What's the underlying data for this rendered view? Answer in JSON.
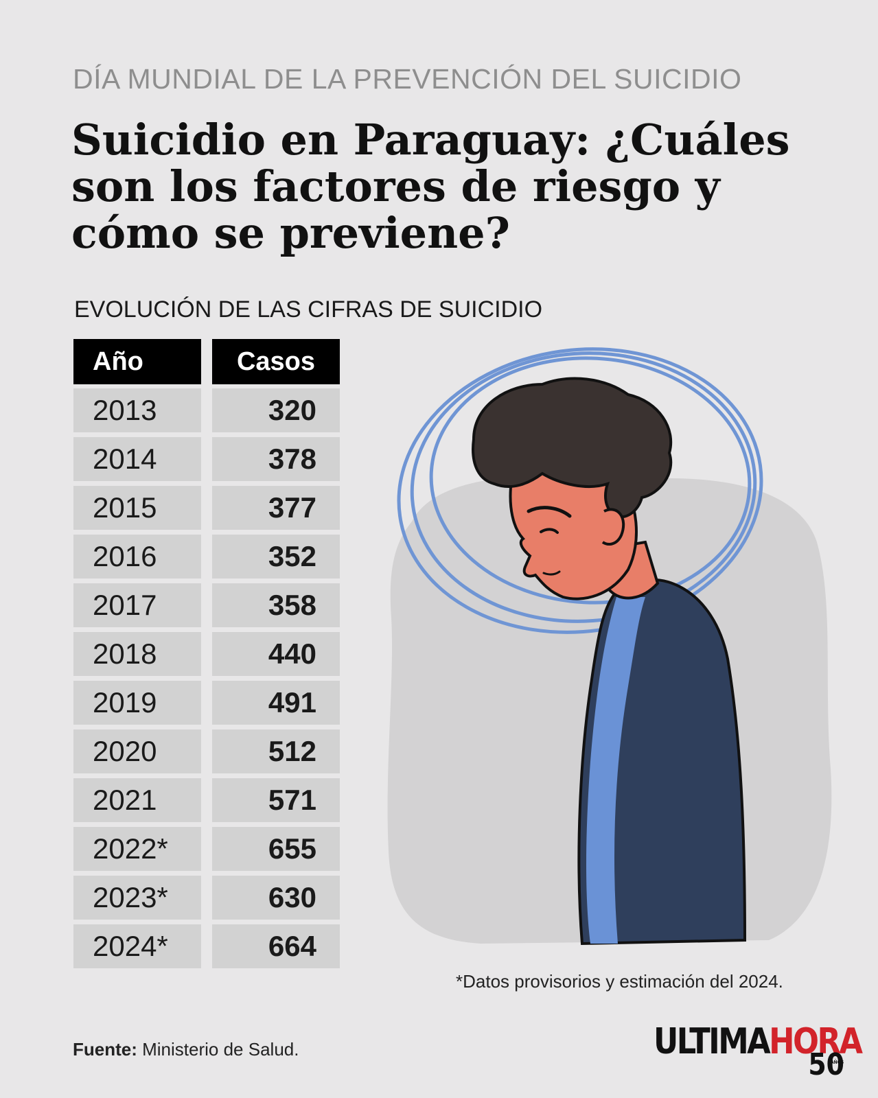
{
  "kicker": "DÍA MUNDIAL DE LA PREVENCIÓN DEL SUICIDIO",
  "headline": "Suicidio en Paraguay: ¿Cuáles son los factores de riesgo y cómo se previene?",
  "section_title": "EVOLUCIÓN DE LAS CIFRAS DE SUICIDIO",
  "table": {
    "headers": {
      "year": "Año",
      "cases": "Casos"
    },
    "rows": [
      {
        "year": "2013",
        "cases": "320"
      },
      {
        "year": "2014",
        "cases": "378"
      },
      {
        "year": "2015",
        "cases": "377"
      },
      {
        "year": "2016",
        "cases": "352"
      },
      {
        "year": "2017",
        "cases": "358"
      },
      {
        "year": "2018",
        "cases": "440"
      },
      {
        "year": "2019",
        "cases": "491"
      },
      {
        "year": "2020",
        "cases": "512"
      },
      {
        "year": "2021",
        "cases": "571"
      },
      {
        "year": "2022*",
        "cases": "655"
      },
      {
        "year": "2023*",
        "cases": "630"
      },
      {
        "year": "2024*",
        "cases": "664"
      }
    ]
  },
  "footnote": "*Datos provisorios y estimación del 2024.",
  "source": {
    "label": "Fuente:",
    "value": "Ministerio de Salud."
  },
  "logo": {
    "part1": "ULTIMA",
    "part2": "HORA",
    "badge": "50",
    "badge_sub": "AÑOS"
  },
  "illustration": {
    "icon": "sad-person-illustration"
  },
  "colors": {
    "background": "#e8e7e8",
    "table_header": "#000000",
    "table_cell": "#d2d2d2",
    "halo": "#6f95d4",
    "sweater": "#2f3f5c",
    "hair": "#3a3230",
    "skin": "#e87e68",
    "brand_red": "#d2232a"
  }
}
